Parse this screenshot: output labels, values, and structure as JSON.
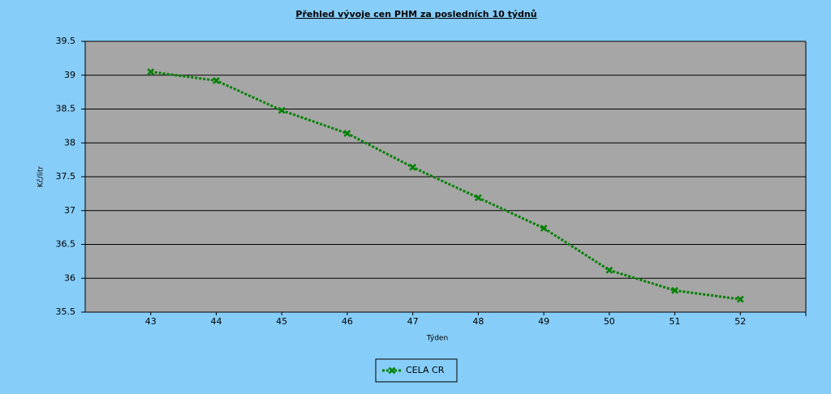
{
  "chart_data": {
    "type": "line",
    "title": "Přehled vývoje cen PHM za posledních 10 týdnů",
    "x_label": "Týden",
    "y_label": "Kč/litr",
    "x": [
      43,
      44,
      45,
      46,
      47,
      48,
      49,
      50,
      51,
      52
    ],
    "xlim": [
      42,
      53
    ],
    "xticks": [
      43,
      44,
      45,
      46,
      47,
      48,
      49,
      50,
      51,
      52
    ],
    "ylim": [
      35.5,
      39.5
    ],
    "yticks": [
      35.5,
      36,
      36.5,
      37,
      37.5,
      38,
      38.5,
      39,
      39.5
    ],
    "grid": true,
    "series": [
      {
        "name": "CELA CR",
        "color": "#008000",
        "values": [
          39.05,
          38.92,
          38.48,
          38.14,
          37.64,
          37.19,
          36.74,
          36.12,
          35.82,
          35.69
        ]
      }
    ]
  }
}
